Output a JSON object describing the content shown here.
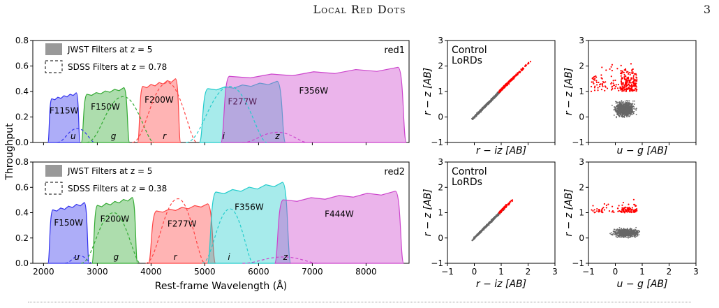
{
  "page": {
    "header": "Local Red Dots",
    "number": "3"
  },
  "figure": {
    "filter_panels": [
      {
        "label": "red1",
        "legend": {
          "jwst": "JWST Filters at z = 5",
          "sdss": "SDSS Filters at z = 0.78"
        },
        "jwst_filters": [
          {
            "name": "F115W",
            "color": "#3333ee",
            "range": [
              2080,
              2680
            ],
            "peak": 0.39
          },
          {
            "name": "F150W",
            "color": "#33aa33",
            "range": [
              2700,
              3600
            ],
            "peak": 0.43
          },
          {
            "name": "F200W",
            "color": "#ff4444",
            "range": [
              3750,
              4550
            ],
            "peak": 0.5
          },
          {
            "name": "F277W",
            "color": "#22cccc",
            "range": [
              4900,
              6500
            ],
            "peak": 0.48
          },
          {
            "name": "F356W",
            "color": "#cc44cc",
            "range": [
              5300,
              8750
            ],
            "peak": 0.59
          }
        ],
        "sdss_filters": [
          "u",
          "g",
          "r",
          "i",
          "z"
        ]
      },
      {
        "label": "red2",
        "legend": {
          "jwst": "JWST Filters at z = 5",
          "sdss": "SDSS Filters at z = 0.38"
        },
        "jwst_filters": [
          {
            "name": "F150W",
            "color": "#3333ee",
            "range": [
              2080,
              2850
            ],
            "peak": 0.48
          },
          {
            "name": "F200W",
            "color": "#33aa33",
            "range": [
              2900,
              3750
            ],
            "peak": 0.52
          },
          {
            "name": "F277W",
            "color": "#ff4444",
            "range": [
              3950,
              5200
            ],
            "peak": 0.47
          },
          {
            "name": "F356W",
            "color": "#22cccc",
            "range": [
              5050,
              6600
            ],
            "peak": 0.64
          },
          {
            "name": "F444W",
            "color": "#cc44cc",
            "range": [
              6300,
              8700
            ],
            "peak": 0.57
          }
        ],
        "sdss_filters": [
          "u",
          "g",
          "r",
          "i",
          "z"
        ]
      }
    ],
    "filter_axes": {
      "ylabel": "Throughput",
      "xlabel": "Rest-frame Wavelength (Å)",
      "yticks": [
        "0.0",
        "0.2",
        "0.4",
        "0.6",
        "0.8"
      ],
      "xticks": [
        "2000",
        "3000",
        "4000",
        "5000",
        "6000",
        "7000",
        "8000"
      ]
    },
    "color_panels": {
      "legend": {
        "control": "Control",
        "lords": "LoRDs"
      },
      "colors": {
        "control": "#666666",
        "lords": "#ff0000"
      },
      "ylabel": "r − z [AB]",
      "xlabel_riz": "r − iz [AB]",
      "xlabel_ug": "u − g [AB]",
      "xticks": [
        "−1",
        "0",
        "1",
        "2",
        "3"
      ],
      "yticks": [
        "−1",
        "0",
        "1",
        "2",
        "3"
      ]
    }
  },
  "chart_data": [
    {
      "type": "area",
      "title": "red1",
      "xlabel": "Rest-frame Wavelength (Å)",
      "ylabel": "Throughput",
      "xlim": [
        1800,
        8800
      ],
      "ylim": [
        0,
        0.8
      ],
      "series": [
        {
          "name": "F115W",
          "range": [
            2080,
            2680
          ],
          "peak": 0.39
        },
        {
          "name": "F150W",
          "range": [
            2700,
            3600
          ],
          "peak": 0.43
        },
        {
          "name": "F200W",
          "range": [
            3750,
            4550
          ],
          "peak": 0.5
        },
        {
          "name": "F277W",
          "range": [
            4900,
            6500
          ],
          "peak": 0.48
        },
        {
          "name": "F356W",
          "range": [
            5300,
            8750
          ],
          "peak": 0.59
        }
      ]
    },
    {
      "type": "area",
      "title": "red2",
      "xlabel": "Rest-frame Wavelength (Å)",
      "ylabel": "Throughput",
      "xlim": [
        1800,
        8800
      ],
      "ylim": [
        0,
        0.8
      ],
      "series": [
        {
          "name": "F150W",
          "range": [
            2080,
            2850
          ],
          "peak": 0.48
        },
        {
          "name": "F200W",
          "range": [
            2900,
            3750
          ],
          "peak": 0.52
        },
        {
          "name": "F277W",
          "range": [
            3950,
            5200
          ],
          "peak": 0.47
        },
        {
          "name": "F356W",
          "range": [
            5050,
            6600
          ],
          "peak": 0.64
        },
        {
          "name": "F444W",
          "range": [
            6300,
            8700
          ],
          "peak": 0.57
        }
      ]
    },
    {
      "type": "scatter",
      "xlabel": "r − iz [AB]",
      "ylabel": "r − z [AB]",
      "xlim": [
        -1,
        3
      ],
      "ylim": [
        -1,
        3
      ]
    },
    {
      "type": "scatter",
      "xlabel": "u − g [AB]",
      "ylabel": "r − z [AB]",
      "xlim": [
        -1,
        3
      ],
      "ylim": [
        -1,
        3
      ]
    },
    {
      "type": "scatter",
      "xlabel": "r − iz [AB]",
      "ylabel": "r − z [AB]",
      "xlim": [
        -1,
        3
      ],
      "ylim": [
        -1,
        3
      ]
    },
    {
      "type": "scatter",
      "xlabel": "u − g [AB]",
      "ylabel": "r − z [AB]",
      "xlim": [
        -1,
        3
      ],
      "ylim": [
        -1,
        3
      ]
    }
  ]
}
